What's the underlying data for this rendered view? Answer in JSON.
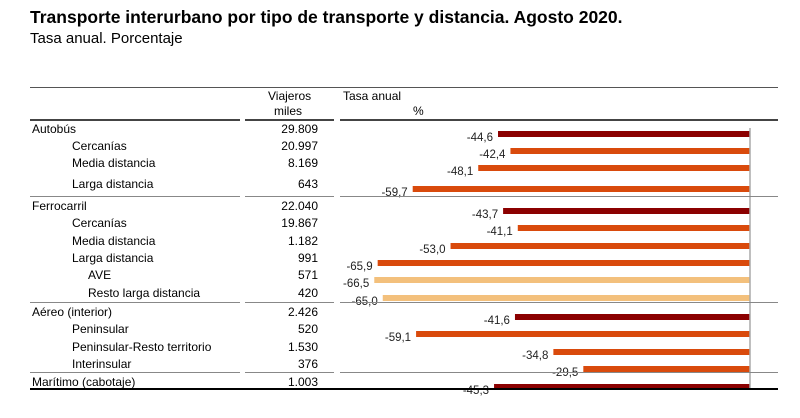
{
  "header": {
    "title": "Transporte interurbano por tipo de transporte y distancia. Agosto 2020.",
    "subtitle": "Tasa anual. Porcentaje"
  },
  "table": {
    "col_viajeros": "Viajeros",
    "col_viajeros_unit": "miles",
    "col_tasa": "Tasa anual",
    "col_tasa_unit": "%"
  },
  "colors": {
    "total": "#8b0000",
    "sub": "#d94a0c",
    "subsub": "#f3c07c",
    "axis": "#aaaaaa"
  },
  "chart_data": {
    "type": "bar",
    "orientation": "horizontal",
    "title": "Transporte interurbano por tipo de transporte y distancia. Agosto 2020.",
    "subtitle": "Tasa anual. Porcentaje",
    "xlabel": "%",
    "ylabel": "",
    "xlim": [
      -66.5,
      0
    ],
    "grid": false,
    "legend": "none",
    "categories": [
      "Autobús",
      "Cercanías",
      "Media distancia",
      "Larga distancia",
      "Ferrocarril",
      "Cercanías",
      "Media distancia",
      "Larga distancia",
      "AVE",
      "Resto larga distancia",
      "Aéreo (interior)",
      "Peninsular",
      "Peninsular-Resto territorio",
      "Interinsular",
      "Marítimo (cabotaje)"
    ],
    "rows": [
      {
        "label": "Autobús",
        "level": 0,
        "viajeros": "29.809",
        "tasa": -44.6,
        "tasa_label": "-44,6"
      },
      {
        "label": "Cercanías",
        "level": 1,
        "viajeros": "20.997",
        "tasa": -42.4,
        "tasa_label": "-42,4"
      },
      {
        "label": "Media distancia",
        "level": 1,
        "viajeros": "8.169",
        "tasa": -48.1,
        "tasa_label": "-48,1"
      },
      {
        "label": "Larga distancia",
        "level": 1,
        "viajeros": "643",
        "tasa": -59.7,
        "tasa_label": "-59,7"
      },
      {
        "label": "Ferrocarril",
        "level": 0,
        "viajeros": "22.040",
        "tasa": -43.7,
        "tasa_label": "-43,7"
      },
      {
        "label": "Cercanías",
        "level": 1,
        "viajeros": "19.867",
        "tasa": -41.1,
        "tasa_label": "-41,1"
      },
      {
        "label": "Media distancia",
        "level": 1,
        "viajeros": "1.182",
        "tasa": -53.0,
        "tasa_label": "-53,0"
      },
      {
        "label": "Larga distancia",
        "level": 1,
        "viajeros": "991",
        "tasa": -65.9,
        "tasa_label": "-65,9"
      },
      {
        "label": "AVE",
        "level": 2,
        "viajeros": "571",
        "tasa": -66.5,
        "tasa_label": "-66,5"
      },
      {
        "label": "Resto larga distancia",
        "level": 2,
        "viajeros": "420",
        "tasa": -65.0,
        "tasa_label": "-65,0"
      },
      {
        "label": "Aéreo (interior)",
        "level": 0,
        "viajeros": "2.426",
        "tasa": -41.6,
        "tasa_label": "-41,6"
      },
      {
        "label": "Peninsular",
        "level": 1,
        "viajeros": "520",
        "tasa": -59.1,
        "tasa_label": "-59,1"
      },
      {
        "label": "Peninsular-Resto territorio",
        "level": 1,
        "viajeros": "1.530",
        "tasa": -34.8,
        "tasa_label": "-34,8"
      },
      {
        "label": "Interinsular",
        "level": 1,
        "viajeros": "376",
        "tasa": -29.5,
        "tasa_label": "-29,5"
      },
      {
        "label": "Marítimo (cabotaje)",
        "level": 0,
        "viajeros": "1.003",
        "tasa": -45.3,
        "tasa_label": "-45,3"
      }
    ],
    "series": [
      {
        "name": "Tasa anual (%)",
        "values": [
          -44.6,
          -42.4,
          -48.1,
          -59.7,
          -43.7,
          -41.1,
          -53.0,
          -65.9,
          -66.5,
          -65.0,
          -41.6,
          -59.1,
          -34.8,
          -29.5,
          -45.3
        ]
      }
    ]
  }
}
